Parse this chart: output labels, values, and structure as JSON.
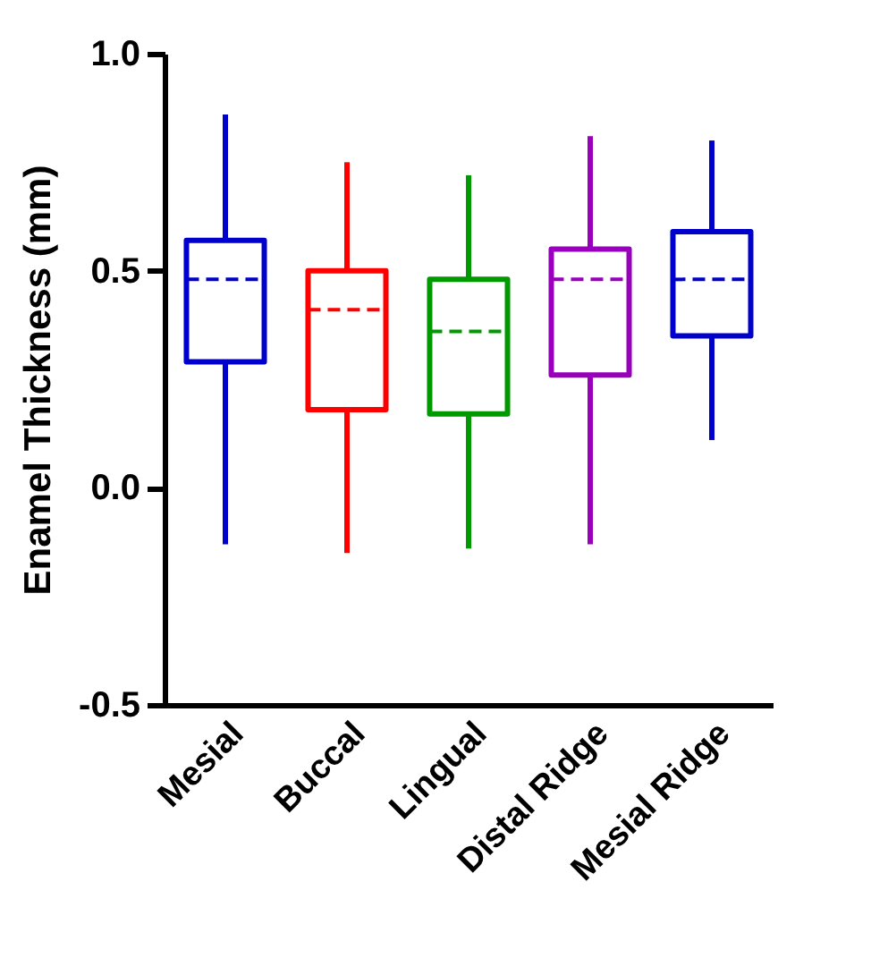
{
  "chart_data": {
    "type": "box",
    "ylabel": "Enamel Thickness (mm)",
    "categories": [
      "Mesial",
      "Buccal",
      "Lingual",
      "Distal Ridge",
      "Mesial Ridge"
    ],
    "colors": [
      "#0000cc",
      "#ff0000",
      "#009900",
      "#9900bb",
      "#0000cc"
    ],
    "boxes": [
      {
        "low": -0.13,
        "q1": 0.29,
        "median": 0.48,
        "q3": 0.57,
        "high": 0.86
      },
      {
        "low": -0.15,
        "q1": 0.18,
        "median": 0.41,
        "q3": 0.5,
        "high": 0.75
      },
      {
        "low": -0.14,
        "q1": 0.17,
        "median": 0.36,
        "q3": 0.48,
        "high": 0.72
      },
      {
        "low": -0.13,
        "q1": 0.26,
        "median": 0.48,
        "q3": 0.55,
        "high": 0.81
      },
      {
        "low": 0.11,
        "q1": 0.35,
        "median": 0.48,
        "q3": 0.59,
        "high": 0.8
      }
    ],
    "ylim": [
      -0.5,
      1.0
    ],
    "yticks": [
      {
        "value": -0.5,
        "label": "-0.5"
      },
      {
        "value": 0,
        "label": "0.0"
      },
      {
        "value": 0.5,
        "label": "0.5"
      },
      {
        "value": 1.0,
        "label": "1.0"
      }
    ],
    "grid": false
  }
}
